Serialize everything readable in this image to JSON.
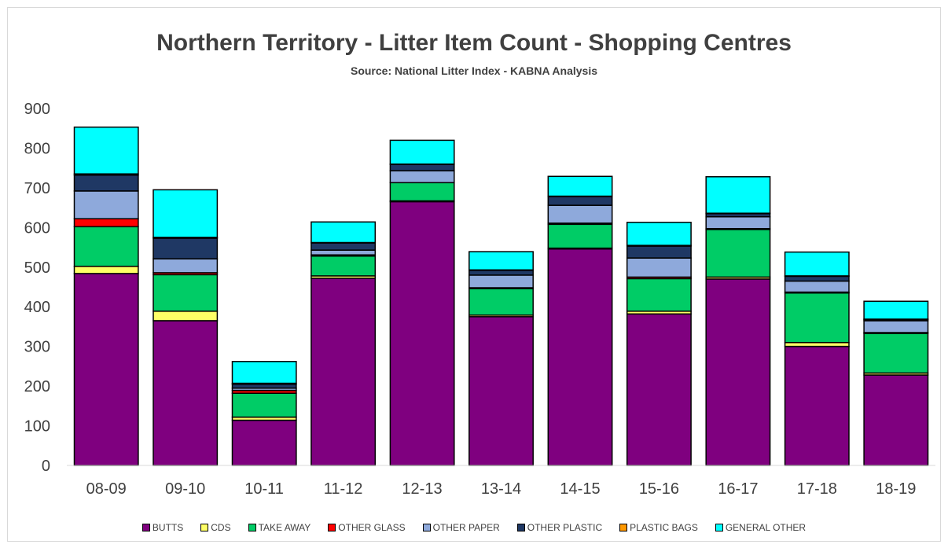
{
  "chart_data": {
    "type": "bar",
    "stacked": true,
    "title": "Northern Territory - Litter Item Count - Shopping Centres",
    "subtitle": "Source: National Litter Index - KABNA Analysis",
    "xlabel": "",
    "ylabel": "",
    "ylim": [
      0,
      900
    ],
    "yticks": [
      0,
      100,
      200,
      300,
      400,
      500,
      600,
      700,
      800,
      900
    ],
    "grid": false,
    "legend_position": "bottom",
    "categories": [
      "08-09",
      "09-10",
      "10-11",
      "11-12",
      "12-13",
      "13-14",
      "14-15",
      "15-16",
      "16-17",
      "17-18",
      "18-19"
    ],
    "series": [
      {
        "name": "BUTTS",
        "color": "#7f007f",
        "values": [
          484,
          365,
          114,
          472,
          665,
          375,
          546,
          382,
          470,
          300,
          228
        ]
      },
      {
        "name": "CDS",
        "color": "#ffff66",
        "values": [
          18,
          24,
          8,
          6,
          2,
          4,
          2,
          7,
          5,
          10,
          5
        ]
      },
      {
        "name": "TAKE AWAY",
        "color": "#00cc66",
        "values": [
          100,
          92,
          60,
          50,
          46,
          67,
          60,
          82,
          120,
          125,
          100
        ]
      },
      {
        "name": "OTHER GLASS",
        "color": "#ff0000",
        "values": [
          20,
          5,
          7,
          3,
          0,
          2,
          3,
          4,
          2,
          2,
          2
        ]
      },
      {
        "name": "OTHER PAPER",
        "color": "#8ea9db",
        "values": [
          70,
          35,
          6,
          12,
          30,
          32,
          45,
          48,
          30,
          28,
          30
        ]
      },
      {
        "name": "OTHER PLASTIC",
        "color": "#1f3864",
        "values": [
          40,
          52,
          10,
          18,
          16,
          12,
          22,
          30,
          8,
          12,
          3
        ]
      },
      {
        "name": "PLASTIC BAGS",
        "color": "#ff9900",
        "values": [
          3,
          2,
          2,
          1,
          1,
          1,
          1,
          2,
          1,
          1,
          1
        ]
      },
      {
        "name": "GENERAL OTHER",
        "color": "#00ffff",
        "values": [
          118,
          120,
          55,
          52,
          60,
          46,
          50,
          58,
          92,
          60,
          45
        ]
      }
    ]
  }
}
